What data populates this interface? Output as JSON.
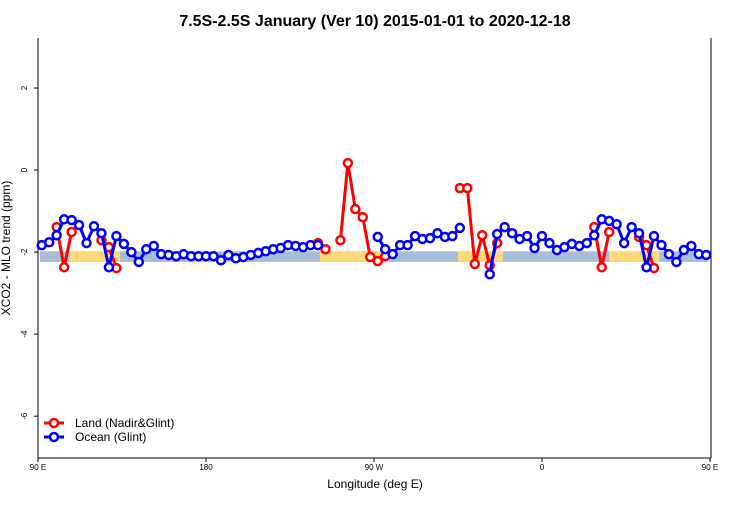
{
  "chart_data": {
    "type": "line",
    "title": "7.5S-2.5S January (Ver 10)   2015-01-01 to 2020-12-18",
    "xlabel": "Longitude (deg E)",
    "ylabel": "XCO2 - MLO trend (ppm)",
    "xlim": [
      90,
      450
    ],
    "ylim": [
      -7.02,
      3.22
    ],
    "x_ticks": [
      {
        "value": 90,
        "label": "90 E"
      },
      {
        "value": 180,
        "label": "180"
      },
      {
        "value": 270,
        "label": "90 W"
      },
      {
        "value": 360,
        "label": "0"
      },
      {
        "value": 450,
        "label": "90 E"
      },
      {
        "value": 540,
        "label": "180"
      }
    ],
    "y_ticks": [
      {
        "value": 2,
        "label": "2"
      },
      {
        "value": 0,
        "label": "0"
      },
      {
        "value": -2,
        "label": "-2"
      },
      {
        "value": -4,
        "label": "-4"
      },
      {
        "value": -6,
        "label": "-6"
      }
    ],
    "x_start": 92,
    "x_step": 4,
    "band": {
      "ymin": -2.24,
      "ymax": -1.98,
      "ocean_color": "#a7bedb",
      "land_color": "#fdd97a",
      "land_segments": [
        [
          107,
          134
        ],
        [
          241,
          278
        ],
        [
          315,
          339
        ],
        [
          396,
          423
        ]
      ]
    },
    "legend": {
      "position": "bottom-left"
    },
    "series": [
      {
        "name": "Land (Nadir&Glint)",
        "color": "#ff0000",
        "values": [
          null,
          null,
          -1.39,
          -2.37,
          -1.51,
          null,
          null,
          null,
          -1.71,
          -1.88,
          -2.39,
          null,
          null,
          null,
          null,
          null,
          null,
          null,
          null,
          null,
          null,
          null,
          null,
          null,
          null,
          null,
          null,
          null,
          null,
          null,
          null,
          null,
          null,
          null,
          null,
          null,
          null,
          -1.78,
          -1.93,
          null,
          -1.71,
          0.17,
          -0.95,
          -1.15,
          -2.12,
          -2.22,
          -2.1,
          null,
          null,
          null,
          null,
          null,
          null,
          null,
          null,
          null,
          -0.44,
          -0.44,
          -2.29,
          -1.59,
          -2.32,
          -1.78,
          null,
          null,
          null,
          null,
          null,
          null,
          null,
          null,
          null,
          null,
          null,
          null,
          -1.39,
          -2.37,
          -1.51,
          null,
          null,
          null,
          -1.63,
          -1.83,
          -2.39,
          null,
          null,
          null,
          null,
          null,
          null,
          null
        ]
      },
      {
        "name": "Ocean (Glint)",
        "color": "#0000ff",
        "values": [
          -1.83,
          -1.76,
          -1.59,
          -1.2,
          -1.22,
          -1.34,
          -1.78,
          -1.37,
          -1.54,
          -2.37,
          -1.61,
          -1.8,
          -2.0,
          -2.24,
          -1.93,
          -1.85,
          -2.05,
          -2.07,
          -2.1,
          -2.05,
          -2.1,
          -2.1,
          -2.1,
          -2.1,
          -2.2,
          -2.07,
          -2.15,
          -2.12,
          -2.07,
          -2.02,
          -1.98,
          -1.93,
          -1.9,
          -1.83,
          -1.85,
          -1.88,
          -1.83,
          -1.83,
          null,
          null,
          null,
          null,
          null,
          null,
          null,
          -1.63,
          -1.93,
          -2.05,
          -1.83,
          -1.83,
          -1.61,
          -1.68,
          -1.66,
          -1.54,
          -1.63,
          -1.61,
          -1.41,
          null,
          null,
          null,
          -2.54,
          -1.56,
          -1.39,
          -1.54,
          -1.68,
          -1.61,
          -1.9,
          -1.61,
          -1.78,
          -1.95,
          -1.88,
          -1.8,
          -1.85,
          -1.78,
          -1.59,
          -1.2,
          -1.24,
          -1.32,
          -1.78,
          -1.39,
          -1.54,
          -2.37,
          -1.61,
          -1.83,
          -2.05,
          -2.24,
          -1.95,
          -1.85,
          -2.05,
          -2.07
        ]
      }
    ]
  }
}
